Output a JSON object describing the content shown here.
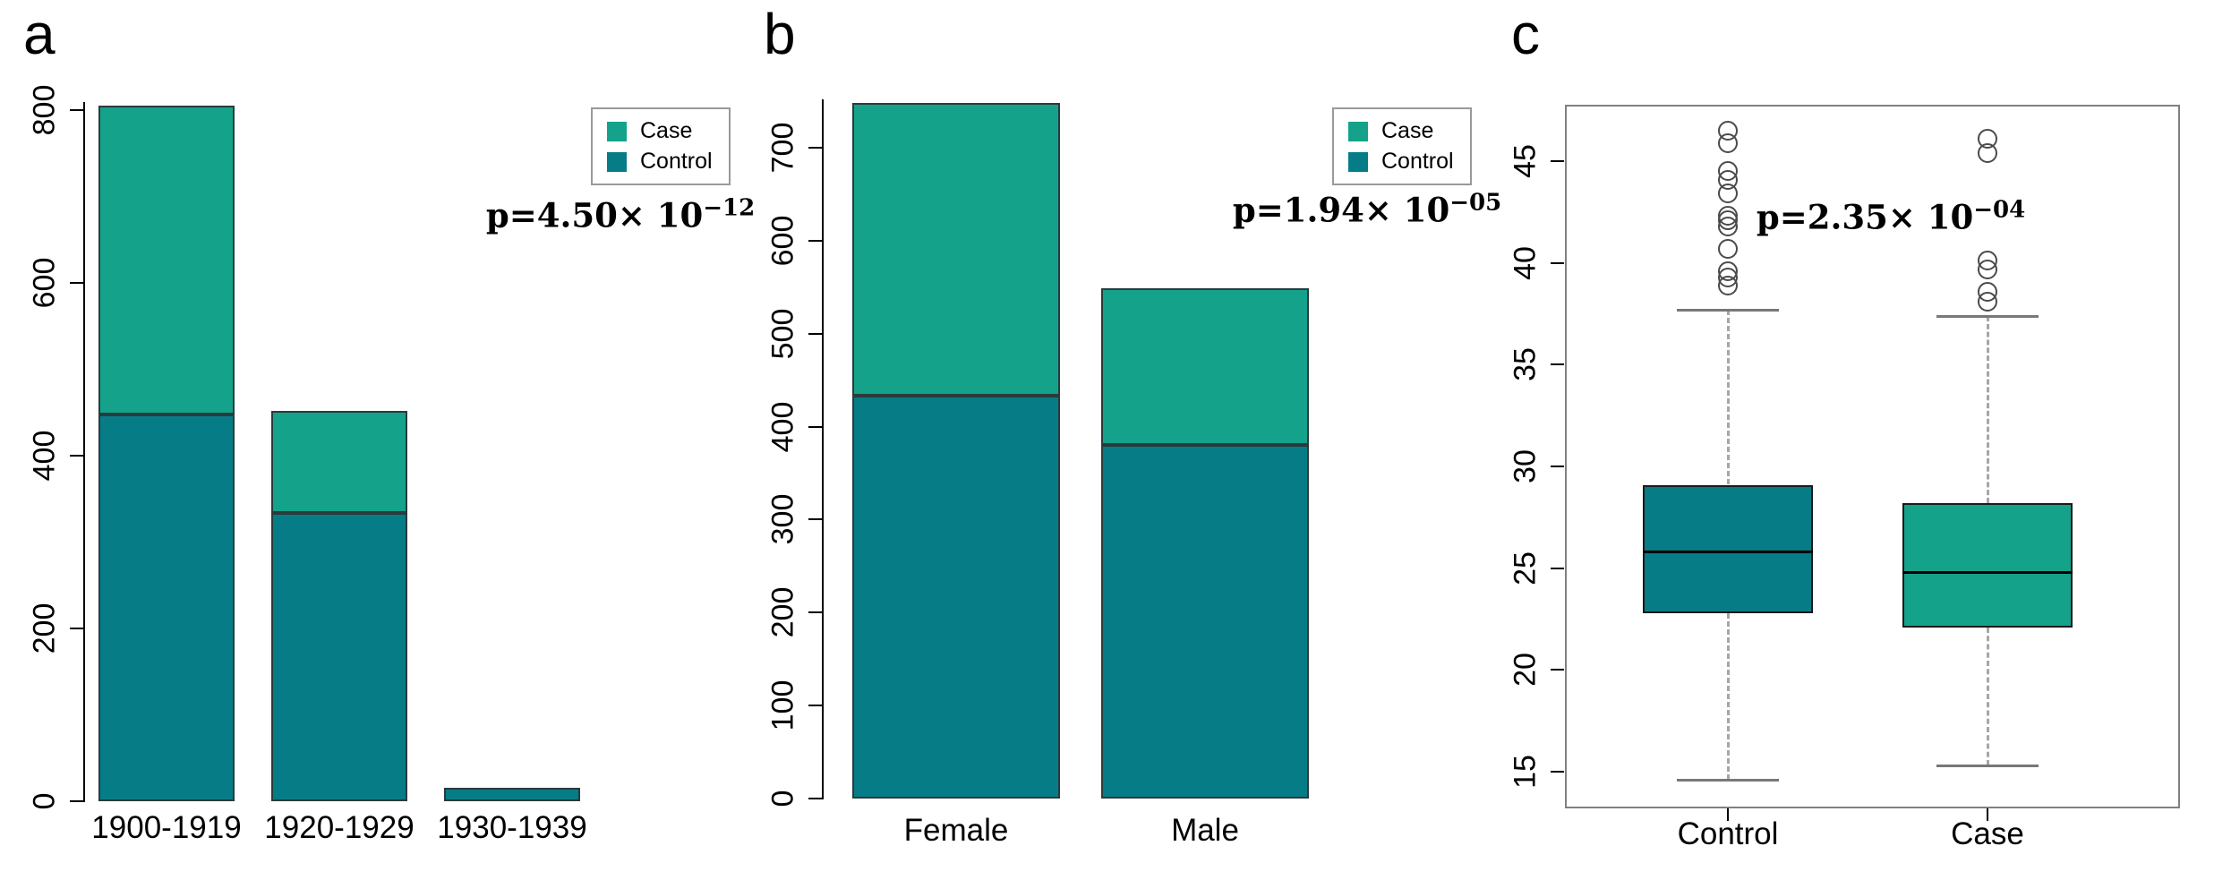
{
  "figure_title": "",
  "colors": {
    "case": "#14a28b",
    "control": "#067c87",
    "bar_border": "#2b3a3c",
    "box_border": "#1a1a1a",
    "median": "#000000",
    "whisker": "#a6a6a6",
    "whisker_cap": "#787878",
    "outlier_stroke": "#4a4a4a",
    "legend_border": "#999999",
    "axis": "#000000",
    "plot_box_border": "#808080",
    "text": "#000000"
  },
  "chart_data": [
    {
      "panel_label": "a",
      "type": "bar",
      "stacked": true,
      "categories": [
        "1900-1919",
        "1920-1929",
        "1930-1939"
      ],
      "series": [
        {
          "name": "Case",
          "color_key": "case",
          "values": [
            357,
            118,
            0
          ]
        },
        {
          "name": "Control",
          "color_key": "control",
          "values": [
            448,
            334,
            16
          ]
        }
      ],
      "ylim": [
        0,
        800
      ],
      "yticks": [
        0,
        200,
        400,
        600,
        800
      ],
      "grid": false,
      "legend": [
        "Case",
        "Control"
      ],
      "legend_position": "top-right",
      "annotation": {
        "prefix": "p=4.50× 10",
        "exp": "−12"
      }
    },
    {
      "panel_label": "b",
      "type": "bar",
      "stacked": true,
      "categories": [
        "Female",
        "Male"
      ],
      "series": [
        {
          "name": "Case",
          "color_key": "case",
          "values": [
            315,
            169
          ]
        },
        {
          "name": "Control",
          "color_key": "control",
          "values": [
            433,
            380
          ]
        }
      ],
      "ylim": [
        0,
        700
      ],
      "yticks": [
        0,
        100,
        200,
        300,
        400,
        500,
        600,
        700
      ],
      "grid": false,
      "legend": [
        "Case",
        "Control"
      ],
      "legend_position": "top-right",
      "annotation": {
        "prefix": "p=1.94× 10",
        "exp": "−05"
      }
    },
    {
      "panel_label": "c",
      "type": "boxplot",
      "categories": [
        "Control",
        "Case"
      ],
      "boxes": [
        {
          "name": "Control",
          "color_key": "control",
          "whisker_low": 14.6,
          "q1": 22.8,
          "median": 25.8,
          "q3": 29.1,
          "whisker_high": 37.7,
          "outliers": [
            38.9,
            39.3,
            39.6,
            40.7,
            41.8,
            42.1,
            42.3,
            43.4,
            44.1,
            44.5,
            45.9,
            46.5
          ]
        },
        {
          "name": "Case",
          "color_key": "case",
          "whisker_low": 15.3,
          "q1": 22.1,
          "median": 24.8,
          "q3": 28.2,
          "whisker_high": 37.4,
          "outliers": [
            38.1,
            38.6,
            39.7,
            40.1,
            45.4,
            46.1
          ]
        }
      ],
      "ylim": [
        13,
        48
      ],
      "yticks": [
        15,
        20,
        25,
        30,
        35,
        40,
        45
      ],
      "grid": false,
      "annotation": {
        "prefix": "p=2.35× 10",
        "exp": "−04"
      }
    }
  ]
}
